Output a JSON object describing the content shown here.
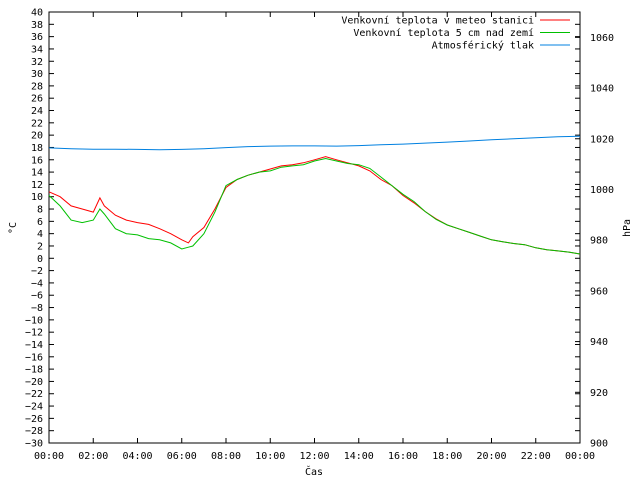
{
  "chart_data": {
    "type": "line",
    "xlabel": "Čas",
    "ylabel": "°C",
    "y2label": "hPa",
    "x_ticks": [
      "00:00",
      "02:00",
      "04:00",
      "06:00",
      "08:00",
      "10:00",
      "12:00",
      "14:00",
      "16:00",
      "18:00",
      "20:00",
      "22:00",
      "00:00"
    ],
    "xlim": [
      0,
      24
    ],
    "ylim": [
      -30,
      40
    ],
    "y_step": 2,
    "y2lim": [
      900,
      1070
    ],
    "y2_ticks": [
      900,
      920,
      940,
      960,
      980,
      1000,
      1020,
      1040,
      1060
    ],
    "grid": false,
    "legend_position": "top-right",
    "series": [
      {
        "name": "Venkovní teplota v meteo stanici",
        "color": "#ff0000",
        "axis": "left",
        "x": [
          0,
          0.5,
          1,
          1.5,
          2,
          2.3,
          2.5,
          3,
          3.5,
          4,
          4.5,
          5,
          5.5,
          6,
          6.3,
          6.5,
          7,
          7.5,
          8,
          8.5,
          9,
          9.5,
          10,
          10.5,
          11,
          11.5,
          12,
          12.5,
          13,
          13.5,
          14,
          14.5,
          15,
          15.5,
          16,
          16.5,
          17,
          17.5,
          18,
          18.5,
          19,
          19.5,
          20,
          20.5,
          21,
          21.5,
          22,
          22.5,
          23,
          23.5,
          24
        ],
        "y": [
          10.8,
          10,
          8.5,
          8,
          7.5,
          9.8,
          8.5,
          7,
          6.2,
          5.8,
          5.5,
          4.8,
          4,
          3,
          2.5,
          3.5,
          5,
          8,
          11.5,
          12.8,
          13.5,
          14,
          14.5,
          15,
          15.2,
          15.5,
          16,
          16.5,
          16,
          15.5,
          15,
          14.2,
          12.8,
          11.8,
          10.2,
          9,
          7.6,
          6.4,
          5.4,
          4.8,
          4.2,
          3.6,
          3,
          2.7,
          2.4,
          2.2,
          1.7,
          1.4,
          1.2,
          1,
          0.7
        ]
      },
      {
        "name": "Venkovní teplota 5 cm nad zemí",
        "color": "#00c000",
        "axis": "left",
        "x": [
          0,
          0.5,
          1,
          1.5,
          2,
          2.3,
          2.5,
          3,
          3.5,
          4,
          4.5,
          5,
          5.5,
          6,
          6.3,
          6.5,
          7,
          7.5,
          8,
          8.5,
          9,
          9.5,
          10,
          10.5,
          11,
          11.5,
          12,
          12.5,
          13,
          13.5,
          14,
          14.5,
          15,
          15.5,
          16,
          16.5,
          17,
          17.5,
          18,
          18.5,
          19,
          19.5,
          20,
          20.5,
          21,
          21.5,
          22,
          22.5,
          23,
          23.5,
          24
        ],
        "y": [
          10.2,
          8.5,
          6.2,
          5.8,
          6.2,
          8,
          7.2,
          4.8,
          4,
          3.8,
          3.2,
          3,
          2.5,
          1.5,
          1.8,
          2,
          4,
          7.5,
          11.8,
          12.8,
          13.5,
          14,
          14.2,
          14.8,
          15,
          15.2,
          15.8,
          16.2,
          15.8,
          15.4,
          15.2,
          14.6,
          13.2,
          11.8,
          10.4,
          9.2,
          7.6,
          6.3,
          5.4,
          4.8,
          4.2,
          3.6,
          3,
          2.7,
          2.4,
          2.2,
          1.7,
          1.4,
          1.2,
          1,
          0.7
        ]
      },
      {
        "name": "Atmosférický tlak",
        "color": "#0080e0",
        "axis": "right",
        "x": [
          0,
          1,
          2,
          3,
          4,
          5,
          6,
          7,
          8,
          9,
          10,
          11,
          12,
          13,
          14,
          15,
          16,
          17,
          18,
          19,
          20,
          21,
          22,
          23,
          24
        ],
        "y": [
          1016.4,
          1016.1,
          1015.9,
          1015.9,
          1015.8,
          1015.7,
          1015.8,
          1016.1,
          1016.5,
          1016.9,
          1017.1,
          1017.2,
          1017.2,
          1017.1,
          1017.3,
          1017.6,
          1017.9,
          1018.3,
          1018.7,
          1019.1,
          1019.6,
          1020,
          1020.4,
          1020.8,
          1021
        ]
      }
    ]
  }
}
